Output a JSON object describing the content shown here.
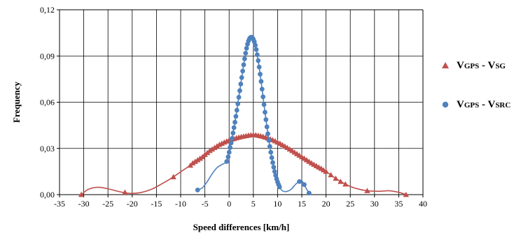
{
  "chart_data": {
    "type": "scatter",
    "xlabel": "Speed differences [km/h]",
    "ylabel": "Frequency",
    "xlim": [
      -35,
      40
    ],
    "ylim": [
      0,
      0.12
    ],
    "x_ticks": [
      -35,
      -30,
      -25,
      -20,
      -15,
      -10,
      -5,
      0,
      5,
      10,
      15,
      20,
      25,
      30,
      35,
      40
    ],
    "x_tick_labels": [
      "-35",
      "-30",
      "-25",
      "-20",
      "-15",
      "-10",
      "-5",
      "0",
      "5",
      "10",
      "15",
      "20",
      "25",
      "30",
      "35",
      "40"
    ],
    "y_ticks": [
      0,
      0.03,
      0.06,
      0.09,
      0.12
    ],
    "y_tick_labels": [
      "0,00",
      "0,03",
      "0,06",
      "0,09",
      "0,12"
    ],
    "grid": true,
    "legend_position": "right",
    "series": [
      {
        "name": "VGPS - VSG",
        "legend_main": "V",
        "legend_sub1": "GPS",
        "legend_mid": " - V",
        "legend_sub2": "SG",
        "marker": "triangle",
        "color": "#c0504d",
        "points": [
          [
            -30.5,
            0.0
          ],
          [
            -21.5,
            0.0015
          ],
          [
            -11.5,
            0.0115
          ],
          [
            -8.0,
            0.019
          ],
          [
            -7.5,
            0.0205
          ],
          [
            -7.0,
            0.0215
          ],
          [
            -6.5,
            0.0225
          ],
          [
            -6.0,
            0.0235
          ],
          [
            -5.5,
            0.0245
          ],
          [
            -5.0,
            0.026
          ],
          [
            -4.5,
            0.0272
          ],
          [
            -4.0,
            0.0285
          ],
          [
            -3.5,
            0.0295
          ],
          [
            -3.0,
            0.0305
          ],
          [
            -2.5,
            0.0315
          ],
          [
            -2.0,
            0.0325
          ],
          [
            -1.5,
            0.0332
          ],
          [
            -1.0,
            0.034
          ],
          [
            -0.5,
            0.0347
          ],
          [
            0.0,
            0.0353
          ],
          [
            0.5,
            0.0358
          ],
          [
            1.0,
            0.0363
          ],
          [
            1.5,
            0.0368
          ],
          [
            2.0,
            0.0372
          ],
          [
            2.5,
            0.0376
          ],
          [
            3.0,
            0.0379
          ],
          [
            3.5,
            0.0382
          ],
          [
            4.0,
            0.0385
          ],
          [
            4.5,
            0.0387
          ],
          [
            5.0,
            0.0388
          ],
          [
            5.5,
            0.0387
          ],
          [
            6.0,
            0.0384
          ],
          [
            6.5,
            0.0381
          ],
          [
            7.0,
            0.0377
          ],
          [
            7.5,
            0.0372
          ],
          [
            8.0,
            0.0367
          ],
          [
            8.5,
            0.0361
          ],
          [
            9.0,
            0.0355
          ],
          [
            9.5,
            0.0348
          ],
          [
            10.0,
            0.034
          ],
          [
            10.5,
            0.0332
          ],
          [
            11.0,
            0.0323
          ],
          [
            11.5,
            0.0314
          ],
          [
            12.0,
            0.0305
          ],
          [
            12.5,
            0.0295
          ],
          [
            13.0,
            0.0285
          ],
          [
            13.5,
            0.0275
          ],
          [
            14.0,
            0.0265
          ],
          [
            14.5,
            0.0255
          ],
          [
            15.0,
            0.0245
          ],
          [
            15.5,
            0.0235
          ],
          [
            16.0,
            0.0225
          ],
          [
            16.5,
            0.0215
          ],
          [
            17.0,
            0.0205
          ],
          [
            17.5,
            0.0196
          ],
          [
            18.0,
            0.0187
          ],
          [
            18.5,
            0.0178
          ],
          [
            19.0,
            0.017
          ],
          [
            19.5,
            0.016
          ],
          [
            20.0,
            0.015
          ],
          [
            21.0,
            0.0128
          ],
          [
            22.0,
            0.0105
          ],
          [
            23.0,
            0.0085
          ],
          [
            24.0,
            0.0068
          ],
          [
            28.5,
            0.0025
          ],
          [
            36.5,
            0.0
          ]
        ],
        "curve": [
          [
            -30.5,
            0.0
          ],
          [
            -29.0,
            0.0035
          ],
          [
            -27.0,
            0.0048
          ],
          [
            -25.0,
            0.0038
          ],
          [
            -23.0,
            0.0022
          ],
          [
            -21.5,
            0.0012
          ],
          [
            -20.0,
            0.0008
          ],
          [
            -18.0,
            0.0015
          ],
          [
            -16.0,
            0.0035
          ],
          [
            -14.0,
            0.0068
          ],
          [
            -12.0,
            0.0105
          ],
          [
            -10.0,
            0.0148
          ],
          [
            -8.0,
            0.019
          ],
          [
            -6.0,
            0.0235
          ],
          [
            -4.0,
            0.0285
          ],
          [
            -2.0,
            0.0325
          ],
          [
            0.0,
            0.0353
          ],
          [
            2.0,
            0.0372
          ],
          [
            4.0,
            0.0385
          ],
          [
            5.0,
            0.0388
          ],
          [
            6.0,
            0.0384
          ],
          [
            8.0,
            0.0367
          ],
          [
            10.0,
            0.034
          ],
          [
            12.0,
            0.0305
          ],
          [
            14.0,
            0.0265
          ],
          [
            16.0,
            0.0225
          ],
          [
            18.0,
            0.0187
          ],
          [
            20.0,
            0.015
          ],
          [
            22.0,
            0.0105
          ],
          [
            24.0,
            0.0068
          ],
          [
            26.0,
            0.0042
          ],
          [
            28.5,
            0.0025
          ],
          [
            31.0,
            0.0022
          ],
          [
            33.0,
            0.0025
          ],
          [
            35.0,
            0.0015
          ],
          [
            36.5,
            0.0
          ]
        ]
      },
      {
        "name": "VGPS - VSRC",
        "legend_main": "V",
        "legend_sub1": "GPS",
        "legend_mid": " - V",
        "legend_sub2": "SRC",
        "marker": "circle",
        "color": "#4f81bd",
        "points": [
          [
            -6.5,
            0.003
          ],
          [
            -0.5,
            0.0215
          ],
          [
            -0.2,
            0.0245
          ],
          [
            0.0,
            0.0275
          ],
          [
            0.2,
            0.0305
          ],
          [
            0.4,
            0.0335
          ],
          [
            0.6,
            0.0365
          ],
          [
            0.8,
            0.04
          ],
          [
            1.0,
            0.0435
          ],
          [
            1.2,
            0.047
          ],
          [
            1.4,
            0.0508
          ],
          [
            1.6,
            0.0548
          ],
          [
            1.8,
            0.059
          ],
          [
            2.0,
            0.0632
          ],
          [
            2.2,
            0.0675
          ],
          [
            2.4,
            0.0718
          ],
          [
            2.6,
            0.076
          ],
          [
            2.8,
            0.0802
          ],
          [
            3.0,
            0.0843
          ],
          [
            3.2,
            0.0882
          ],
          [
            3.4,
            0.0918
          ],
          [
            3.6,
            0.095
          ],
          [
            3.8,
            0.0977
          ],
          [
            4.0,
            0.0998
          ],
          [
            4.2,
            0.1012
          ],
          [
            4.4,
            0.102
          ],
          [
            4.6,
            0.1022
          ],
          [
            4.8,
            0.1018
          ],
          [
            5.0,
            0.1008
          ],
          [
            5.2,
            0.0992
          ],
          [
            5.4,
            0.097
          ],
          [
            5.6,
            0.0942
          ],
          [
            5.8,
            0.0908
          ],
          [
            6.0,
            0.087
          ],
          [
            6.2,
            0.0828
          ],
          [
            6.4,
            0.0782
          ],
          [
            6.6,
            0.0735
          ],
          [
            6.8,
            0.0685
          ],
          [
            7.0,
            0.0635
          ],
          [
            7.2,
            0.0585
          ],
          [
            7.4,
            0.0535
          ],
          [
            7.6,
            0.0487
          ],
          [
            7.8,
            0.044
          ],
          [
            8.0,
            0.0395
          ],
          [
            8.2,
            0.0352
          ],
          [
            8.4,
            0.0313
          ],
          [
            8.6,
            0.0275
          ],
          [
            8.8,
            0.024
          ],
          [
            9.0,
            0.0208
          ],
          [
            9.2,
            0.0178
          ],
          [
            9.4,
            0.015
          ],
          [
            9.6,
            0.0125
          ],
          [
            9.8,
            0.0102
          ],
          [
            10.0,
            0.0082
          ],
          [
            10.2,
            0.0065
          ],
          [
            10.4,
            0.005
          ],
          [
            14.5,
            0.0085
          ],
          [
            15.5,
            0.0065
          ],
          [
            16.5,
            0.001
          ]
        ],
        "curve": [
          [
            -6.5,
            0.003
          ],
          [
            -5.5,
            0.0045
          ],
          [
            -4.5,
            0.0085
          ],
          [
            -3.5,
            0.0135
          ],
          [
            -2.5,
            0.0175
          ],
          [
            -1.5,
            0.0195
          ],
          [
            -0.5,
            0.0215
          ],
          [
            0.0,
            0.0275
          ],
          [
            0.6,
            0.0365
          ],
          [
            1.2,
            0.047
          ],
          [
            1.8,
            0.059
          ],
          [
            2.4,
            0.0718
          ],
          [
            3.0,
            0.0843
          ],
          [
            3.6,
            0.095
          ],
          [
            4.2,
            0.1012
          ],
          [
            4.6,
            0.1022
          ],
          [
            5.0,
            0.1008
          ],
          [
            5.6,
            0.0942
          ],
          [
            6.2,
            0.0828
          ],
          [
            6.8,
            0.0685
          ],
          [
            7.4,
            0.0535
          ],
          [
            8.0,
            0.0395
          ],
          [
            8.6,
            0.0275
          ],
          [
            9.2,
            0.0178
          ],
          [
            9.8,
            0.0102
          ],
          [
            10.4,
            0.005
          ],
          [
            11.0,
            0.0025
          ],
          [
            11.8,
            0.002
          ],
          [
            12.8,
            0.0035
          ],
          [
            13.8,
            0.007
          ],
          [
            14.5,
            0.0085
          ],
          [
            15.0,
            0.009
          ],
          [
            15.5,
            0.0065
          ],
          [
            16.0,
            0.0035
          ],
          [
            16.5,
            0.001
          ]
        ]
      }
    ]
  }
}
